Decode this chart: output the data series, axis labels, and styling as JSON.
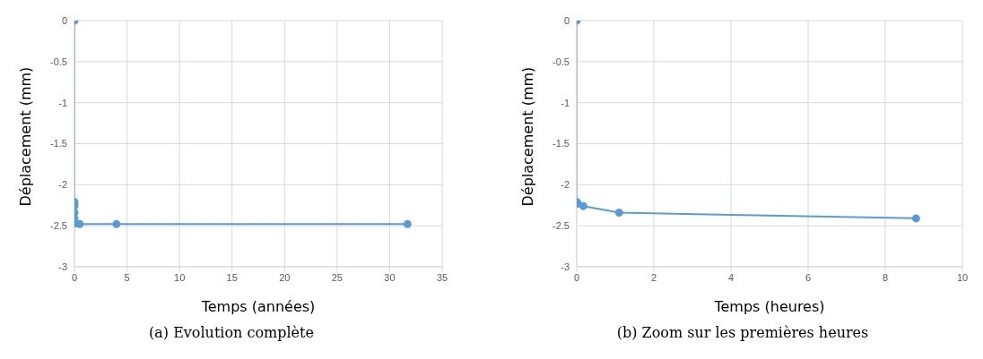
{
  "chart_data": [
    {
      "type": "line",
      "xlabel": "Temps (années)",
      "ylabel": "Déplacement (mm)",
      "annotations": [
        "(a) Evolution complète"
      ],
      "xlim": [
        0,
        35
      ],
      "xticks": [
        0,
        5,
        10,
        15,
        20,
        25,
        30,
        35
      ],
      "ylim": [
        -3,
        0
      ],
      "yticks": [
        -3,
        -2.5,
        -2,
        -1.5,
        -1,
        -0.5,
        0
      ],
      "grid": true,
      "marker": "circle",
      "line_style": "solid",
      "legend": false,
      "series": [
        {
          "color": "#5b9bd5",
          "x": [
            0,
            0,
            0,
            0,
            0.001,
            0.001,
            0.02,
            0.1,
            0.5,
            4,
            31.7
          ],
          "values": [
            0,
            -2.21,
            -2.23,
            -2.26,
            -2.34,
            -2.41,
            -2.45,
            -2.47,
            -2.48,
            -2.48,
            -2.48
          ]
        }
      ]
    },
    {
      "type": "line",
      "xlabel": "Temps (heures)",
      "ylabel": "Déplacement (mm)",
      "annotations": [
        "(b) Zoom sur les premières heures"
      ],
      "xlim": [
        0,
        10
      ],
      "xticks": [
        0,
        2,
        4,
        6,
        8,
        10
      ],
      "ylim": [
        -3,
        0
      ],
      "yticks": [
        -3,
        -2.5,
        -2,
        -1.5,
        -1,
        -0.5,
        0
      ],
      "grid": true,
      "marker": "circle",
      "line_style": "solid",
      "legend": false,
      "series": [
        {
          "color": "#5b9bd5",
          "x": [
            0,
            0,
            0.03,
            0.17,
            1.1,
            8.8
          ],
          "values": [
            0,
            -2.21,
            -2.23,
            -2.26,
            -2.34,
            -2.41
          ]
        }
      ]
    }
  ]
}
